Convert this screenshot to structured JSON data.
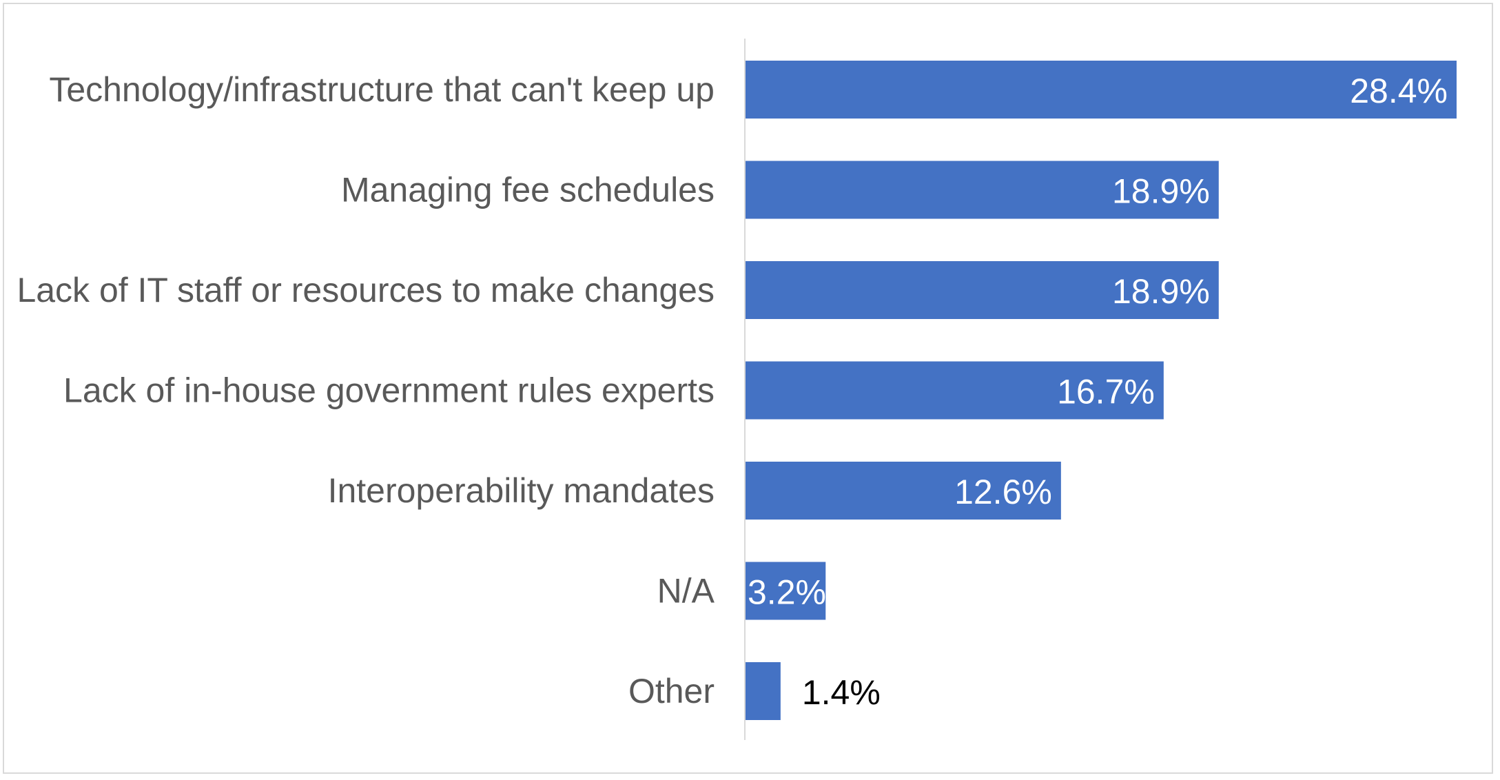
{
  "chart_data": {
    "type": "bar",
    "orientation": "horizontal",
    "categories": [
      "Technology/infrastructure that can't keep up",
      "Managing fee schedules",
      "Lack of IT staff or resources to make changes",
      "Lack of in-house government rules experts",
      "Interoperability mandates",
      "N/A",
      "Other"
    ],
    "values": [
      28.4,
      18.9,
      18.9,
      16.7,
      12.6,
      3.2,
      1.4
    ],
    "data_labels": [
      "28.4%",
      "18.9%",
      "18.9%",
      "16.7%",
      "12.6%",
      "3.2%",
      "1.4%"
    ],
    "title": "",
    "xlabel": "",
    "ylabel": "",
    "xlim": [
      0,
      30
    ],
    "grid": false,
    "legend": "none",
    "colors": {
      "bar": "#4472c4",
      "axis_line": "#d9d9d9",
      "label_inside": "#ffffff",
      "label_outside": "#000000",
      "category_text": "#595959"
    }
  }
}
